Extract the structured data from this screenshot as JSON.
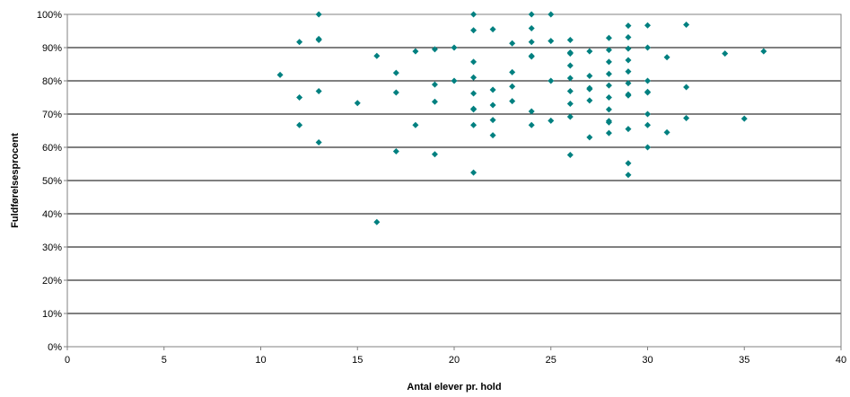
{
  "chart_data": {
    "type": "scatter",
    "title": "",
    "xlabel": "Antal elever pr. hold",
    "ylabel": "Fuldførelsesprocent",
    "xlim": [
      0,
      40
    ],
    "ylim": [
      0,
      100
    ],
    "x_ticks": [
      0,
      5,
      10,
      15,
      20,
      25,
      30,
      35,
      40
    ],
    "y_ticks": [
      0,
      10,
      20,
      30,
      40,
      50,
      60,
      70,
      80,
      90,
      100
    ],
    "y_tick_format": "percent",
    "grid": "horizontal",
    "legend": "none",
    "marker": "diamond",
    "marker_color": "#008080",
    "series": [
      {
        "points": [
          [
            11,
            81.8
          ],
          [
            12,
            91.7
          ],
          [
            12,
            75.0
          ],
          [
            12,
            66.7
          ],
          [
            13,
            100
          ],
          [
            13,
            92.3
          ],
          [
            13,
            92.6
          ],
          [
            13,
            76.9
          ],
          [
            13,
            61.5
          ],
          [
            15,
            73.3
          ],
          [
            16,
            87.5
          ],
          [
            16,
            37.5
          ],
          [
            17,
            82.4
          ],
          [
            17,
            76.5
          ],
          [
            17,
            58.8
          ],
          [
            18,
            88.9
          ],
          [
            18,
            66.7
          ],
          [
            19,
            89.5
          ],
          [
            19,
            78.9
          ],
          [
            19,
            73.7
          ],
          [
            19,
            57.9
          ],
          [
            20,
            90.0
          ],
          [
            20,
            80.0
          ],
          [
            21,
            100
          ],
          [
            21,
            95.2
          ],
          [
            21,
            85.7
          ],
          [
            21,
            81.0
          ],
          [
            21,
            76.2
          ],
          [
            21,
            71.4
          ],
          [
            21,
            71.6
          ],
          [
            21,
            66.7
          ],
          [
            21,
            52.4
          ],
          [
            22,
            95.5
          ],
          [
            22,
            77.3
          ],
          [
            22,
            72.7
          ],
          [
            22,
            68.2
          ],
          [
            22,
            63.6
          ],
          [
            23,
            91.3
          ],
          [
            23,
            82.6
          ],
          [
            23,
            78.3
          ],
          [
            23,
            73.9
          ],
          [
            24,
            100
          ],
          [
            24,
            95.8
          ],
          [
            24,
            91.7
          ],
          [
            24,
            87.5
          ],
          [
            24,
            87.3
          ],
          [
            24,
            70.8
          ],
          [
            24,
            66.7
          ],
          [
            25,
            100
          ],
          [
            25,
            92.0
          ],
          [
            25,
            80.0
          ],
          [
            25,
            68.0
          ],
          [
            26,
            92.3
          ],
          [
            26,
            88.5
          ],
          [
            26,
            88.2
          ],
          [
            26,
            84.6
          ],
          [
            26,
            80.8
          ],
          [
            26,
            76.9
          ],
          [
            26,
            73.1
          ],
          [
            26,
            69.2
          ],
          [
            26,
            57.7
          ],
          [
            27,
            88.9
          ],
          [
            27,
            81.5
          ],
          [
            27,
            77.8
          ],
          [
            27,
            77.5
          ],
          [
            27,
            74.1
          ],
          [
            27,
            63.0
          ],
          [
            28,
            92.9
          ],
          [
            28,
            89.3
          ],
          [
            28,
            85.7
          ],
          [
            28,
            82.1
          ],
          [
            28,
            78.6
          ],
          [
            28,
            75.0
          ],
          [
            28,
            71.4
          ],
          [
            28,
            67.9
          ],
          [
            28,
            67.5
          ],
          [
            28,
            64.3
          ],
          [
            29,
            96.6
          ],
          [
            29,
            93.1
          ],
          [
            29,
            89.7
          ],
          [
            29,
            86.2
          ],
          [
            29,
            82.8
          ],
          [
            29,
            79.3
          ],
          [
            29,
            75.9
          ],
          [
            29,
            75.6
          ],
          [
            29,
            65.5
          ],
          [
            29,
            55.2
          ],
          [
            29,
            51.7
          ],
          [
            30,
            96.7
          ],
          [
            30,
            90.0
          ],
          [
            30,
            80.0
          ],
          [
            30,
            76.7
          ],
          [
            30,
            76.5
          ],
          [
            30,
            70.0
          ],
          [
            30,
            66.7
          ],
          [
            30,
            60.0
          ],
          [
            31,
            87.1
          ],
          [
            31,
            64.5
          ],
          [
            32,
            96.9
          ],
          [
            32,
            78.1
          ],
          [
            32,
            68.8
          ],
          [
            34,
            88.2
          ],
          [
            35,
            68.6
          ],
          [
            36,
            88.9
          ]
        ]
      }
    ]
  }
}
